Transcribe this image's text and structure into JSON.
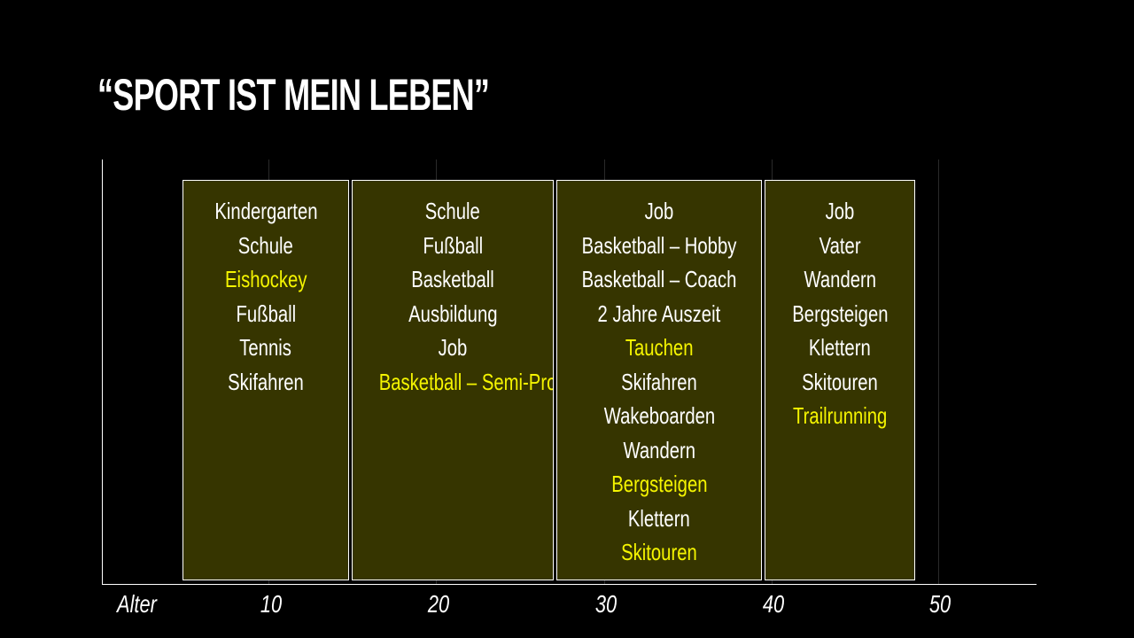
{
  "slide": {
    "title": "“SPORT IST MEIN LEBEN”"
  },
  "colors": {
    "background": "#000000",
    "text": "#ffffff",
    "highlight": "#f5f500",
    "period_fill": "#363500"
  },
  "axis": {
    "name": "Alter",
    "ticks": [
      "10",
      "20",
      "30",
      "40",
      "50"
    ],
    "tick_values": [
      10,
      20,
      30,
      40,
      50
    ]
  },
  "periods": [
    {
      "items": [
        {
          "text": "Kindergarten",
          "highlight": false
        },
        {
          "text": "Schule",
          "highlight": false
        },
        {
          "text": "Eishockey",
          "highlight": true
        },
        {
          "text": "Fußball",
          "highlight": false
        },
        {
          "text": "Tennis",
          "highlight": false
        },
        {
          "text": "Skifahren",
          "highlight": false
        }
      ]
    },
    {
      "items": [
        {
          "text": "Schule",
          "highlight": false
        },
        {
          "text": "Fußball",
          "highlight": false
        },
        {
          "text": "Basketball",
          "highlight": false
        },
        {
          "text": "Ausbildung",
          "highlight": false
        },
        {
          "text": "Job",
          "highlight": false
        },
        {
          "text": "Basketball – Semi-Profi",
          "highlight": true
        }
      ]
    },
    {
      "items": [
        {
          "text": "Job",
          "highlight": false
        },
        {
          "text": "Basketball – Hobby",
          "highlight": false
        },
        {
          "text": "Basketball – Coach",
          "highlight": false
        },
        {
          "text": "2 Jahre Auszeit",
          "highlight": false
        },
        {
          "text": "Tauchen",
          "highlight": true
        },
        {
          "text": "Skifahren",
          "highlight": false
        },
        {
          "text": "Wakeboarden",
          "highlight": false
        },
        {
          "text": "Wandern",
          "highlight": false
        },
        {
          "text": "Bergsteigen",
          "highlight": true
        },
        {
          "text": "Klettern",
          "highlight": false
        },
        {
          "text": "Skitouren",
          "highlight": true
        }
      ]
    },
    {
      "items": [
        {
          "text": "Job",
          "highlight": false
        },
        {
          "text": "Vater",
          "highlight": false
        },
        {
          "text": "Wandern",
          "highlight": false
        },
        {
          "text": "Bergsteigen",
          "highlight": false
        },
        {
          "text": "Klettern",
          "highlight": false
        },
        {
          "text": "Skitouren",
          "highlight": false
        },
        {
          "text": "Trailrunning",
          "highlight": true
        }
      ]
    }
  ]
}
